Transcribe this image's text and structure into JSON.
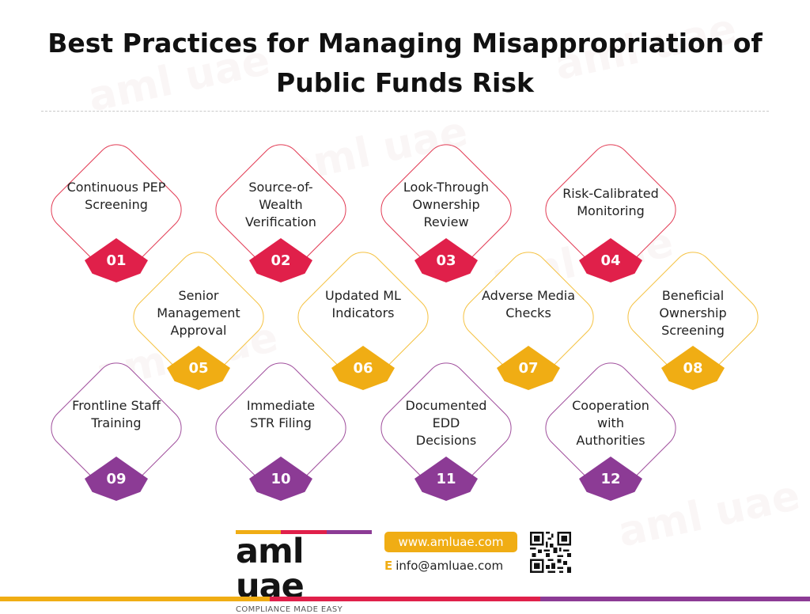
{
  "title": {
    "line1": "Best Practices for Managing Misappropriation of",
    "line2": "Public Funds Risk"
  },
  "colors": {
    "red": "#e0204a",
    "yellow": "#f0ad14",
    "purple": "#8c3b95"
  },
  "items": [
    {
      "number": "01",
      "label": "Continuous PEP Screening",
      "color": "red"
    },
    {
      "number": "02",
      "label": "Source-of-Wealth Verification",
      "color": "red"
    },
    {
      "number": "03",
      "label": "Look-Through Ownership Review",
      "color": "red"
    },
    {
      "number": "04",
      "label": "Risk-Calibrated Monitoring",
      "color": "red"
    },
    {
      "number": "05",
      "label": "Senior Management Approval",
      "color": "yellow"
    },
    {
      "number": "06",
      "label": "Updated ML Indicators",
      "color": "yellow"
    },
    {
      "number": "07",
      "label": "Adverse Media Checks",
      "color": "yellow"
    },
    {
      "number": "08",
      "label": "Beneficial Ownership Screening",
      "color": "yellow"
    },
    {
      "number": "09",
      "label": "Frontline Staff Training",
      "color": "purple"
    },
    {
      "number": "10",
      "label": "Immediate STR Filing",
      "color": "purple"
    },
    {
      "number": "11",
      "label": "Documented EDD Decisions",
      "color": "purple"
    },
    {
      "number": "12",
      "label": "Cooperation with Authorities",
      "color": "purple"
    }
  ],
  "footer": {
    "logo_text": "aml uae",
    "tagline": "COMPLIANCE MADE EASY",
    "website": "www.amluae.com",
    "email_prefix": "E",
    "email": "info@amluae.com"
  },
  "watermark_text": "aml uae"
}
